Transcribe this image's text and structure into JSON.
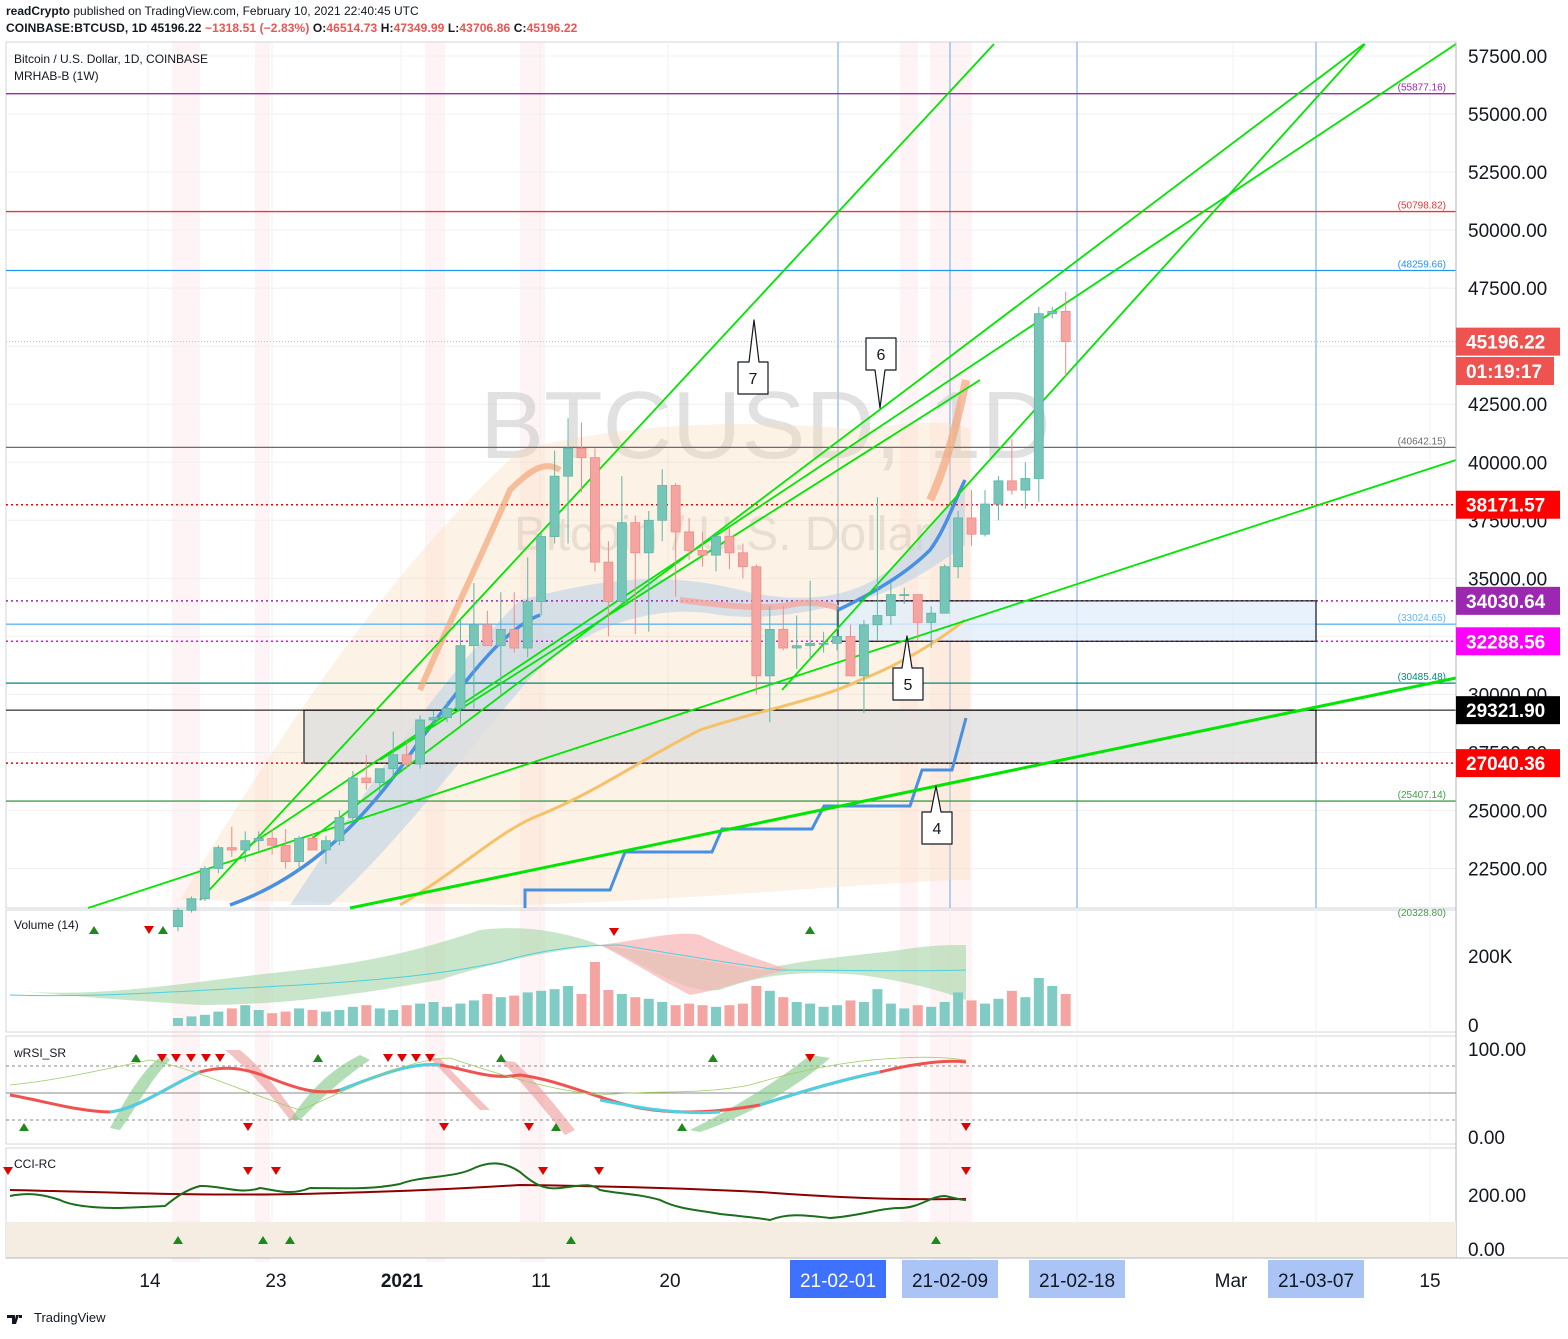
{
  "header": {
    "publisher": "readCrypto",
    "published_text": "published on TradingView.com, February 10, 2021 22:40:45 UTC",
    "symbol_line": "COINBASE:BTCUSD, 1D",
    "last": "45196.22",
    "change": "−1318.51 (−2.83%)",
    "open_label": "O:",
    "open": "46514.73",
    "high_label": "H:",
    "high": "47349.99",
    "low_label": "L:",
    "low": "43706.86",
    "close_label": "C:",
    "close": "45196.22"
  },
  "legend": {
    "series_title": "Bitcoin / U.S. Dollar, 1D, COINBASE",
    "indicator": "MRHAB-B (1W)"
  },
  "watermark": {
    "symbol": "BTCUSD, 1D",
    "name": "Bitcoin / U.S. Dollar"
  },
  "panes": {
    "volume": "Volume (14)",
    "rsi": "wRSI_SR",
    "cci": "CCI-RC"
  },
  "footer": {
    "brand": "TradingView"
  },
  "colors": {
    "up": "#26a69a",
    "down": "#ef5350",
    "trendline": "#00e600",
    "blue": "#4a90e2",
    "orange": "#f5c26b"
  },
  "chart_data": {
    "type": "candlestick",
    "title": "Bitcoin / U.S. Dollar, 1D, COINBASE",
    "ylim": [
      20328.8,
      58500
    ],
    "y_ticks": [
      22500,
      25000,
      27500,
      30000,
      32500,
      35000,
      37500,
      40000,
      42500,
      45000,
      47500,
      50000,
      52500,
      55000,
      57500
    ],
    "y_tick_labels": [
      "22500.00",
      "25000.00",
      "27500.00",
      "30000.00",
      "32500.00",
      "35000.00",
      "37500.00",
      "40000.00",
      "42500.00",
      "45000.00",
      "47500.00",
      "50000.00",
      "52500.00",
      "55000.00",
      "57500.00"
    ],
    "x_labels": [
      "14",
      "23",
      "2021",
      "11",
      "20",
      "21-02-01",
      "21-02-09",
      "21-02-18",
      "Mar",
      "21-03-07",
      "15"
    ],
    "highlighted_dates": [
      "21-02-01",
      "21-02-09",
      "21-02-18",
      "21-03-07"
    ],
    "horizontal_levels": [
      {
        "value": 55877.16,
        "label": "(55877.16)",
        "color": "#9c27b0"
      },
      {
        "value": 50798.82,
        "label": "(50798.82)",
        "color": "#e53935"
      },
      {
        "value": 48259.66,
        "label": "(48259.66)",
        "color": "#2196f3"
      },
      {
        "value": 40642.15,
        "label": "(40642.15)",
        "color": "#6d6d6d"
      },
      {
        "value": 33024.65,
        "label": "(33024.65)",
        "color": "#64b5f6"
      },
      {
        "value": 30485.48,
        "label": "(30485.48)",
        "color": "#00897b"
      },
      {
        "value": 25407.14,
        "label": "(25407.14)",
        "color": "#43a047"
      },
      {
        "value": 20328.8,
        "label": "(20328.80)",
        "color": "#43a047"
      }
    ],
    "price_tags": [
      {
        "value": 45196.22,
        "label": "45196.22",
        "bg": "#ef5350",
        "fg": "#ffffff"
      },
      {
        "value": 44000,
        "label": "01:19:17",
        "bg": "#ef5350",
        "fg": "#ffffff"
      },
      {
        "value": 38171.57,
        "label": "38171.57",
        "bg": "#ff0000",
        "fg": "#ffffff"
      },
      {
        "value": 34030.64,
        "label": "34030.64",
        "bg": "#9c27b0",
        "fg": "#ffffff"
      },
      {
        "value": 32288.56,
        "label": "32288.56",
        "bg": "#ff00ff",
        "fg": "#ffffff"
      },
      {
        "value": 29321.9,
        "label": "29321.90",
        "bg": "#000000",
        "fg": "#ffffff"
      },
      {
        "value": 27040.36,
        "label": "27040.36",
        "bg": "#ff0000",
        "fg": "#ffffff"
      }
    ],
    "annotations": [
      "4",
      "5",
      "6",
      "7"
    ],
    "candles_ohlc": [
      [
        20000,
        20800,
        19800,
        20700
      ],
      [
        20700,
        21300,
        20600,
        21200
      ],
      [
        21200,
        22600,
        21100,
        22500
      ],
      [
        22500,
        23500,
        22300,
        23400
      ],
      [
        23400,
        24300,
        23000,
        23300
      ],
      [
        23300,
        24100,
        22800,
        23700
      ],
      [
        23700,
        24100,
        23200,
        23800
      ],
      [
        23800,
        24200,
        23100,
        23500
      ],
      [
        23500,
        24200,
        22500,
        22800
      ],
      [
        22800,
        23900,
        22400,
        23800
      ],
      [
        23800,
        24000,
        23300,
        23300
      ],
      [
        23300,
        23900,
        22700,
        23700
      ],
      [
        23700,
        25000,
        23500,
        24700
      ],
      [
        24700,
        26700,
        24500,
        26400
      ],
      [
        26400,
        27400,
        25900,
        26200
      ],
      [
        26200,
        26800,
        25800,
        26800
      ],
      [
        26800,
        28400,
        26300,
        27400
      ],
      [
        27400,
        28000,
        26800,
        27000
      ],
      [
        27000,
        29100,
        26800,
        28900
      ],
      [
        28900,
        29300,
        28700,
        29000
      ],
      [
        29000,
        29700,
        28800,
        29400
      ],
      [
        29400,
        33300,
        28700,
        32100
      ],
      [
        32100,
        34800,
        29400,
        33000
      ],
      [
        33000,
        33600,
        32500,
        32100
      ],
      [
        32100,
        34400,
        30000,
        32800
      ],
      [
        32800,
        34400,
        31800,
        32000
      ],
      [
        32000,
        35900,
        31600,
        34000
      ],
      [
        34000,
        37000,
        33400,
        36800
      ],
      [
        36800,
        40500,
        36500,
        39400
      ],
      [
        39400,
        41900,
        36500,
        40600
      ],
      [
        40600,
        41700,
        38700,
        40200
      ],
      [
        40200,
        40600,
        35300,
        35700
      ],
      [
        35700,
        36600,
        32500,
        34000
      ],
      [
        34000,
        39400,
        33900,
        37400
      ],
      [
        37400,
        37700,
        32600,
        36100
      ],
      [
        36100,
        37900,
        32700,
        37500
      ],
      [
        37500,
        39700,
        36600,
        39000
      ],
      [
        39000,
        39100,
        34200,
        37000
      ],
      [
        37000,
        37600,
        35800,
        36200
      ],
      [
        36200,
        37000,
        35500,
        36000
      ],
      [
        36000,
        37000,
        35300,
        36800
      ],
      [
        36800,
        37200,
        35400,
        36100
      ],
      [
        36100,
        36500,
        35000,
        35500
      ],
      [
        35500,
        35600,
        30000,
        30800
      ],
      [
        30800,
        33800,
        28800,
        32800
      ],
      [
        32800,
        33800,
        31900,
        32000
      ],
      [
        32000,
        33400,
        31100,
        32100
      ],
      [
        32100,
        34900,
        31500,
        32200
      ],
      [
        32200,
        32700,
        31800,
        32200
      ],
      [
        32200,
        33800,
        31900,
        32500
      ],
      [
        32500,
        33000,
        30800,
        30800
      ],
      [
        30800,
        33200,
        29200,
        33000
      ],
      [
        33000,
        38500,
        32300,
        33400
      ],
      [
        33400,
        34800,
        33000,
        34300
      ],
      [
        34300,
        34600,
        33900,
        34300
      ],
      [
        34300,
        34300,
        32300,
        33100
      ],
      [
        33100,
        33800,
        32000,
        33500
      ],
      [
        33500,
        35600,
        33500,
        35500
      ],
      [
        35500,
        37900,
        35000,
        37600
      ],
      [
        37600,
        38800,
        36400,
        36900
      ],
      [
        36900,
        38800,
        36800,
        38200
      ],
      [
        38200,
        39400,
        37500,
        39200
      ],
      [
        39200,
        41000,
        38600,
        38800
      ],
      [
        38800,
        40000,
        38000,
        39300
      ],
      [
        39300,
        46700,
        38300,
        46400
      ],
      [
        46400,
        46700,
        46200,
        46500
      ],
      [
        46500,
        47350,
        43700,
        45196
      ]
    ],
    "volume_k": [
      10,
      12,
      14,
      18,
      22,
      26,
      20,
      16,
      18,
      22,
      20,
      18,
      20,
      24,
      26,
      22,
      20,
      26,
      28,
      30,
      24,
      28,
      32,
      40,
      36,
      38,
      42,
      44,
      46,
      50,
      40,
      80,
      45,
      40,
      36,
      34,
      30,
      26,
      28,
      26,
      24,
      26,
      28,
      50,
      44,
      36,
      30,
      28,
      24,
      26,
      32,
      30,
      46,
      28,
      22,
      26,
      24,
      30,
      42,
      32,
      28,
      34,
      44,
      36,
      60,
      50,
      40
    ],
    "indicators": [
      "MRHAB-B (1W)",
      "Volume (14)",
      "wRSI_SR",
      "CCI-RC"
    ],
    "rsi_ticks": [
      "100.00",
      "0.00"
    ],
    "cci_ticks": [
      "200.00",
      "0.00"
    ],
    "volume_ticks": [
      "200K",
      "0"
    ]
  }
}
